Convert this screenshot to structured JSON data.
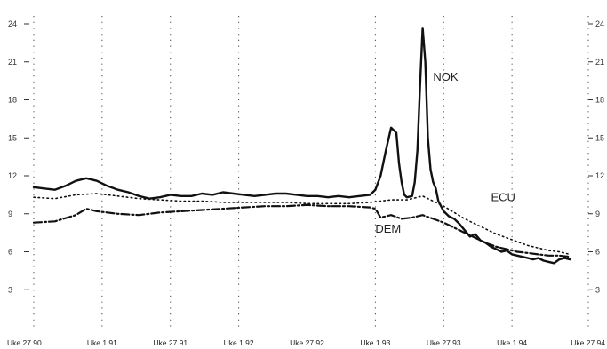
{
  "chart_data": {
    "type": "line",
    "y_ticks": [
      "3",
      "6",
      "9",
      "12",
      "15",
      "18",
      "21",
      "24"
    ],
    "ylim": [
      0,
      24
    ],
    "x_ticks": [
      "Uke 27 90",
      "Uke 1 91",
      "Uke 27 91",
      "Uke 1 92",
      "Uke 27 92",
      "Uke 1 93",
      "Uke 27 93",
      "Uke 1 94",
      "Uke 27 94"
    ],
    "x_range_weeks": [
      0,
      208
    ],
    "grid": "vertical dotted lines at x ticks",
    "series": [
      {
        "name": "NOK",
        "style": "solid",
        "color": "#111111",
        "points": [
          [
            0,
            11.1
          ],
          [
            4,
            11.0
          ],
          [
            8,
            10.9
          ],
          [
            12,
            11.2
          ],
          [
            16,
            11.6
          ],
          [
            20,
            11.8
          ],
          [
            24,
            11.6
          ],
          [
            28,
            11.2
          ],
          [
            32,
            10.9
          ],
          [
            36,
            10.7
          ],
          [
            40,
            10.4
          ],
          [
            44,
            10.2
          ],
          [
            48,
            10.3
          ],
          [
            52,
            10.5
          ],
          [
            56,
            10.4
          ],
          [
            60,
            10.4
          ],
          [
            64,
            10.6
          ],
          [
            68,
            10.5
          ],
          [
            72,
            10.7
          ],
          [
            76,
            10.6
          ],
          [
            80,
            10.5
          ],
          [
            84,
            10.4
          ],
          [
            88,
            10.5
          ],
          [
            92,
            10.6
          ],
          [
            96,
            10.6
          ],
          [
            100,
            10.5
          ],
          [
            104,
            10.4
          ],
          [
            108,
            10.4
          ],
          [
            112,
            10.3
          ],
          [
            116,
            10.4
          ],
          [
            120,
            10.3
          ],
          [
            124,
            10.4
          ],
          [
            128,
            10.5
          ],
          [
            130,
            10.9
          ],
          [
            132,
            12.0
          ],
          [
            134,
            14.0
          ],
          [
            136,
            15.8
          ],
          [
            138,
            15.4
          ],
          [
            139,
            13.0
          ],
          [
            140,
            11.5
          ],
          [
            141,
            10.5
          ],
          [
            142,
            10.3
          ],
          [
            144,
            10.4
          ],
          [
            145,
            11.5
          ],
          [
            146,
            14.0
          ],
          [
            147,
            19.0
          ],
          [
            148,
            23.7
          ],
          [
            149,
            21.0
          ],
          [
            150,
            15.0
          ],
          [
            151,
            12.5
          ],
          [
            152,
            11.5
          ],
          [
            153,
            11.0
          ],
          [
            154,
            10.0
          ],
          [
            156,
            9.2
          ],
          [
            158,
            8.8
          ],
          [
            160,
            8.6
          ],
          [
            162,
            8.2
          ],
          [
            164,
            7.7
          ],
          [
            166,
            7.2
          ],
          [
            168,
            7.4
          ],
          [
            170,
            6.9
          ],
          [
            172,
            6.7
          ],
          [
            174,
            6.4
          ],
          [
            176,
            6.2
          ],
          [
            178,
            6.0
          ],
          [
            180,
            6.1
          ],
          [
            182,
            5.8
          ],
          [
            184,
            5.7
          ],
          [
            186,
            5.6
          ],
          [
            188,
            5.5
          ],
          [
            190,
            5.4
          ],
          [
            192,
            5.5
          ],
          [
            194,
            5.3
          ],
          [
            196,
            5.2
          ],
          [
            198,
            5.1
          ],
          [
            200,
            5.4
          ],
          [
            202,
            5.5
          ],
          [
            204,
            5.4
          ]
        ]
      },
      {
        "name": "ECU",
        "style": "dotted",
        "color": "#111111",
        "points": [
          [
            0,
            10.3
          ],
          [
            8,
            10.2
          ],
          [
            16,
            10.5
          ],
          [
            24,
            10.6
          ],
          [
            32,
            10.4
          ],
          [
            40,
            10.2
          ],
          [
            48,
            10.1
          ],
          [
            56,
            10.0
          ],
          [
            64,
            10.0
          ],
          [
            72,
            9.9
          ],
          [
            80,
            9.9
          ],
          [
            88,
            9.9
          ],
          [
            96,
            9.9
          ],
          [
            104,
            9.8
          ],
          [
            112,
            9.8
          ],
          [
            120,
            9.8
          ],
          [
            128,
            9.9
          ],
          [
            136,
            10.1
          ],
          [
            142,
            10.1
          ],
          [
            148,
            10.4
          ],
          [
            152,
            10.0
          ],
          [
            156,
            9.6
          ],
          [
            160,
            9.1
          ],
          [
            164,
            8.6
          ],
          [
            168,
            8.2
          ],
          [
            172,
            7.8
          ],
          [
            176,
            7.4
          ],
          [
            180,
            7.1
          ],
          [
            184,
            6.8
          ],
          [
            188,
            6.5
          ],
          [
            192,
            6.3
          ],
          [
            196,
            6.1
          ],
          [
            200,
            6.0
          ],
          [
            204,
            5.8
          ]
        ]
      },
      {
        "name": "DEM",
        "style": "dashdot",
        "color": "#111111",
        "points": [
          [
            0,
            8.3
          ],
          [
            8,
            8.4
          ],
          [
            16,
            8.9
          ],
          [
            20,
            9.4
          ],
          [
            24,
            9.2
          ],
          [
            32,
            9.0
          ],
          [
            40,
            8.9
          ],
          [
            48,
            9.1
          ],
          [
            56,
            9.2
          ],
          [
            64,
            9.3
          ],
          [
            72,
            9.4
          ],
          [
            80,
            9.5
          ],
          [
            88,
            9.6
          ],
          [
            96,
            9.6
          ],
          [
            104,
            9.7
          ],
          [
            112,
            9.6
          ],
          [
            120,
            9.6
          ],
          [
            128,
            9.5
          ],
          [
            130,
            9.4
          ],
          [
            132,
            8.7
          ],
          [
            136,
            8.9
          ],
          [
            140,
            8.6
          ],
          [
            144,
            8.7
          ],
          [
            148,
            8.9
          ],
          [
            152,
            8.6
          ],
          [
            156,
            8.3
          ],
          [
            160,
            7.9
          ],
          [
            164,
            7.5
          ],
          [
            168,
            7.1
          ],
          [
            172,
            6.7
          ],
          [
            176,
            6.4
          ],
          [
            180,
            6.2
          ],
          [
            184,
            6.0
          ],
          [
            188,
            5.9
          ],
          [
            192,
            5.8
          ],
          [
            196,
            5.7
          ],
          [
            200,
            5.7
          ],
          [
            204,
            5.6
          ]
        ]
      }
    ],
    "annotations": [
      {
        "text": "NOK",
        "at": [
          152,
          19.5
        ]
      },
      {
        "text": "ECU",
        "at": [
          174,
          10.0
        ]
      },
      {
        "text": "DEM",
        "at": [
          130,
          7.5
        ]
      }
    ]
  }
}
